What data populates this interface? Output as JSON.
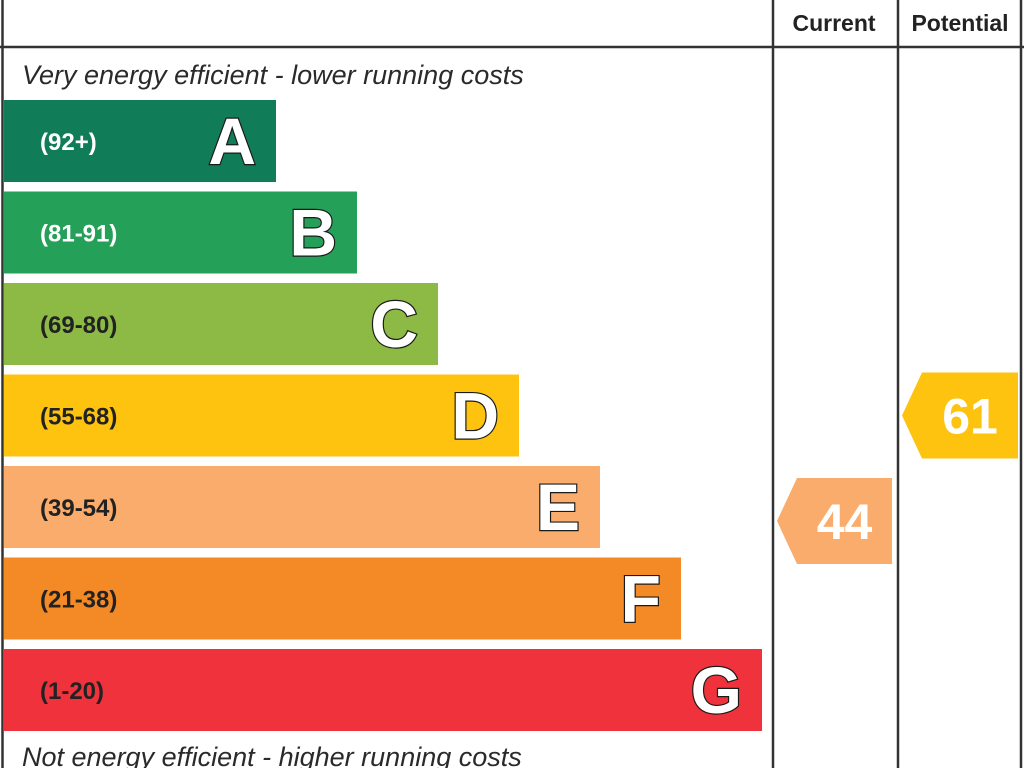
{
  "header": {
    "current_label": "Current",
    "potential_label": "Potential"
  },
  "captions": {
    "top": "Very energy efficient - lower running costs",
    "bottom": "Not energy efficient - higher running costs"
  },
  "chart_data": {
    "type": "bar",
    "title": "",
    "orientation": "horizontal",
    "bands": [
      {
        "letter": "A",
        "range": "(92+)",
        "min": 92,
        "max": 100,
        "color": "#107c58",
        "text_color": "#ffffff"
      },
      {
        "letter": "B",
        "range": "(81-91)",
        "min": 81,
        "max": 91,
        "color": "#25a059",
        "text_color": "#ffffff"
      },
      {
        "letter": "C",
        "range": "(69-80)",
        "min": 69,
        "max": 80,
        "color": "#8dba45",
        "text_color": "#222222"
      },
      {
        "letter": "D",
        "range": "(55-68)",
        "min": 55,
        "max": 68,
        "color": "#fec30f",
        "text_color": "#222222"
      },
      {
        "letter": "E",
        "range": "(39-54)",
        "min": 39,
        "max": 54,
        "color": "#f9ac6c",
        "text_color": "#222222"
      },
      {
        "letter": "F",
        "range": "(21-38)",
        "min": 21,
        "max": 38,
        "color": "#f38a26",
        "text_color": "#222222"
      },
      {
        "letter": "G",
        "range": "(1-20)",
        "min": 1,
        "max": 20,
        "color": "#f0323c",
        "text_color": "#222222"
      }
    ],
    "ratings": {
      "current": {
        "value": 44,
        "band": "E",
        "color": "#f9ac6c"
      },
      "potential": {
        "value": 61,
        "band": "D",
        "color": "#fec30f"
      }
    }
  }
}
